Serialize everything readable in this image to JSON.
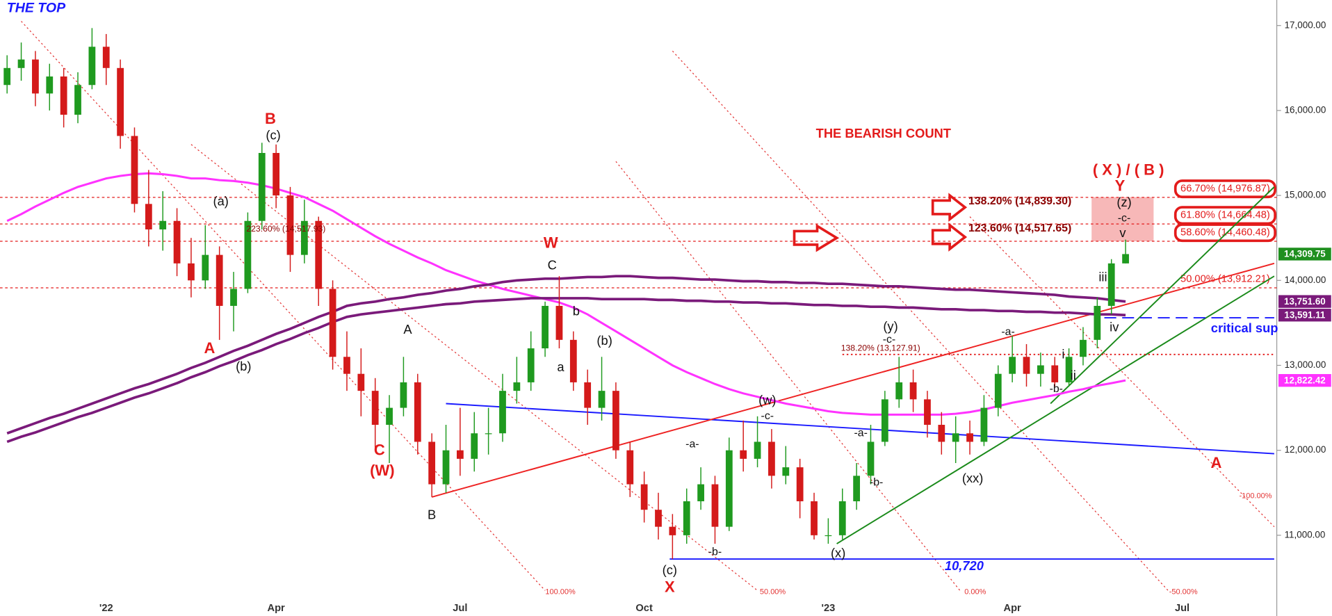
{
  "chart_data": {
    "type": "candlestick",
    "title": "THE TOP",
    "subtitle": "THE BEARISH COUNT",
    "categories": [
      null,
      null,
      null,
      null,
      null,
      null,
      null,
      "'22",
      null,
      null,
      null,
      null,
      null,
      null,
      null,
      null,
      null,
      null,
      null,
      "Apr",
      null,
      null,
      null,
      null,
      null,
      null,
      null,
      null,
      null,
      null,
      null,
      null,
      "Jul",
      null,
      null,
      null,
      null,
      null,
      null,
      null,
      null,
      null,
      null,
      null,
      null,
      "Oct",
      null,
      null,
      null,
      null,
      null,
      null,
      null,
      null,
      null,
      null,
      null,
      null,
      "'23",
      null,
      null,
      null,
      null,
      null,
      null,
      null,
      null,
      null,
      null,
      null,
      null,
      "Apr",
      null,
      null,
      null,
      null,
      null,
      null,
      null,
      null,
      null,
      null,
      null,
      "Jul",
      null,
      null,
      null,
      null,
      null,
      null
    ],
    "open": [
      16300,
      16500,
      16600,
      16200,
      16400,
      15950,
      16300,
      16750,
      16500,
      15700,
      14900,
      14600,
      14700,
      14200,
      14000,
      14300,
      13700,
      13900,
      14700,
      15500,
      15000,
      14300,
      14700,
      13900,
      13100,
      12900,
      12700,
      12300,
      12500,
      12800,
      12100,
      11600,
      12000,
      11900,
      12200,
      12200,
      12700,
      12800,
      13200,
      13700,
      13300,
      12800,
      12500,
      12700,
      12000,
      11600,
      11300,
      11100,
      11000,
      11400,
      11600,
      11100,
      12000,
      11900,
      12100,
      11700,
      11800,
      11400,
      11000,
      11000,
      11400,
      11700,
      12100,
      12600,
      12800,
      12600,
      12300,
      12100,
      12200,
      12100,
      12500,
      12900,
      13100,
      12900,
      13000,
      12800,
      13100,
      13300,
      13700,
      14200,
      null,
      null,
      null,
      null,
      null,
      null,
      null,
      null,
      null,
      null
    ],
    "high": [
      16650,
      16800,
      16700,
      16550,
      16500,
      16450,
      16970,
      16900,
      16600,
      15800,
      15300,
      15050,
      14850,
      14500,
      14650,
      14400,
      14100,
      14800,
      15620,
      15600,
      15100,
      14950,
      14750,
      14000,
      13400,
      13200,
      12850,
      12650,
      13100,
      12900,
      12200,
      12300,
      12500,
      12450,
      12500,
      12900,
      13100,
      13400,
      13750,
      14050,
      13400,
      12950,
      13100,
      12800,
      12100,
      11750,
      11500,
      11250,
      11550,
      11800,
      11700,
      12150,
      12350,
      12400,
      12250,
      12050,
      11900,
      11500,
      11200,
      11550,
      11850,
      12300,
      12700,
      13100,
      12950,
      12700,
      12450,
      12400,
      12350,
      12650,
      13000,
      13350,
      13250,
      13150,
      13100,
      13200,
      13450,
      13800,
      14250,
      14480,
      null,
      null,
      null,
      null,
      null,
      null,
      null,
      null,
      null,
      null
    ],
    "low": [
      16200,
      16350,
      16050,
      16000,
      15800,
      15850,
      16250,
      16300,
      15550,
      14800,
      14400,
      14350,
      14050,
      13800,
      13900,
      13300,
      13400,
      13850,
      14600,
      14850,
      14100,
      14200,
      13700,
      12950,
      12700,
      12400,
      12000,
      11850,
      12400,
      11950,
      11450,
      11500,
      11700,
      11750,
      11950,
      12100,
      12550,
      12700,
      13100,
      13200,
      12700,
      12300,
      12350,
      11900,
      11450,
      11150,
      10950,
      10720,
      10900,
      11300,
      10900,
      11050,
      11750,
      11800,
      11550,
      11600,
      11200,
      10950,
      10900,
      10950,
      11300,
      11600,
      12050,
      12500,
      12450,
      12150,
      11950,
      11850,
      11950,
      12050,
      12400,
      12800,
      12750,
      12750,
      12750,
      12750,
      13000,
      13200,
      13600,
      14200,
      null,
      null,
      null,
      null,
      null,
      null,
      null,
      null,
      null,
      null
    ],
    "close": [
      16500,
      16600,
      16200,
      16400,
      15950,
      16300,
      16750,
      16500,
      15700,
      14900,
      14600,
      14700,
      14200,
      14000,
      14300,
      13700,
      13900,
      14700,
      15500,
      15000,
      14300,
      14700,
      13900,
      13100,
      12900,
      12700,
      12300,
      12500,
      12800,
      12100,
      11600,
      12000,
      11900,
      12200,
      12200,
      12700,
      12800,
      13200,
      13700,
      13300,
      12800,
      12500,
      12700,
      12000,
      11600,
      11300,
      11100,
      11000,
      11400,
      11600,
      11100,
      12000,
      11900,
      12100,
      11700,
      11800,
      11400,
      11000,
      11000,
      11400,
      11700,
      12100,
      12600,
      12800,
      12600,
      12300,
      12100,
      12200,
      12100,
      12500,
      12900,
      13100,
      12900,
      13000,
      12800,
      13100,
      13300,
      13700,
      14200,
      14309.75,
      null,
      null,
      null,
      null,
      null,
      null,
      null,
      null,
      null,
      null
    ],
    "close_last_label": "14,309.75",
    "up_color": "#1f9a1f",
    "down_color": "#d41a1a",
    "price_box_color": "#1f8f1f",
    "ylim": [
      10050,
      17300
    ],
    "yticks": [
      {
        "value": 11000,
        "label": "11,000.00"
      },
      {
        "value": 12000,
        "label": "12,000.00"
      },
      {
        "value": 13000,
        "label": "13,000.00"
      },
      {
        "value": 14000,
        "label": "14,000.00"
      },
      {
        "value": 15000,
        "label": "15,000.00"
      },
      {
        "value": 16000,
        "label": "16,000.00"
      },
      {
        "value": 17000,
        "label": "17,000.00"
      }
    ],
    "overlays": [
      {
        "color": "#ff33ff",
        "last_value_label": "12,822.42",
        "values": [
          14700,
          14780,
          14870,
          14950,
          15030,
          15100,
          15150,
          15200,
          15230,
          15250,
          15260,
          15250,
          15230,
          15200,
          15200,
          15180,
          15170,
          15150,
          15120,
          15080,
          15030,
          14980,
          14900,
          14820,
          14720,
          14620,
          14520,
          14430,
          14350,
          14270,
          14200,
          14120,
          14060,
          14000,
          13950,
          13900,
          13860,
          13820,
          13780,
          13740,
          13680,
          13600,
          13500,
          13400,
          13300,
          13200,
          13100,
          13000,
          12920,
          12850,
          12780,
          12720,
          12670,
          12630,
          12590,
          12550,
          12520,
          12490,
          12460,
          12440,
          12430,
          12420,
          12420,
          12420,
          12420,
          12420,
          12420,
          12430,
          12450,
          12480,
          12520,
          12560,
          12590,
          12620,
          12650,
          12690,
          12720,
          12760,
          12790,
          12822.42,
          null,
          null,
          null,
          null,
          null,
          null,
          null,
          null,
          null,
          null
        ]
      },
      {
        "color": "#7a1a7a",
        "last_value_label": "13,751.60",
        "values": [
          12200,
          12260,
          12320,
          12380,
          12430,
          12490,
          12550,
          12610,
          12670,
          12730,
          12780,
          12840,
          12900,
          12970,
          13030,
          13100,
          13170,
          13230,
          13300,
          13370,
          13430,
          13500,
          13570,
          13630,
          13700,
          13730,
          13750,
          13780,
          13800,
          13830,
          13850,
          13880,
          13900,
          13930,
          13950,
          13980,
          14000,
          14010,
          14020,
          14020,
          14030,
          14040,
          14040,
          14050,
          14050,
          14040,
          14030,
          14030,
          14020,
          14010,
          14010,
          14000,
          13990,
          13990,
          13980,
          13980,
          13970,
          13970,
          13960,
          13960,
          13950,
          13940,
          13930,
          13930,
          13920,
          13910,
          13900,
          13890,
          13890,
          13880,
          13870,
          13860,
          13850,
          13840,
          13830,
          13810,
          13800,
          13790,
          13770,
          13751.6,
          null,
          null,
          null,
          null,
          null,
          null,
          null,
          null,
          null,
          null
        ]
      },
      {
        "color": "#7a1a7a",
        "last_value_label": "13,591.11",
        "values": [
          12100,
          12160,
          12210,
          12270,
          12330,
          12390,
          12440,
          12500,
          12560,
          12620,
          12670,
          12730,
          12790,
          12860,
          12920,
          12990,
          13050,
          13120,
          13180,
          13250,
          13310,
          13380,
          13440,
          13510,
          13570,
          13600,
          13620,
          13640,
          13660,
          13680,
          13700,
          13720,
          13730,
          13750,
          13760,
          13770,
          13780,
          13790,
          13790,
          13790,
          13790,
          13790,
          13780,
          13780,
          13780,
          13780,
          13770,
          13770,
          13760,
          13760,
          13750,
          13750,
          13740,
          13740,
          13730,
          13730,
          13720,
          13710,
          13710,
          13700,
          13700,
          13690,
          13690,
          13680,
          13680,
          13670,
          13660,
          13660,
          13650,
          13650,
          13640,
          13640,
          13630,
          13630,
          13620,
          13620,
          13610,
          13600,
          13600,
          13591.11,
          null,
          null,
          null,
          null,
          null,
          null,
          null,
          null,
          null,
          null
        ]
      }
    ],
    "level_color": "#e31b1b",
    "levels": [
      {
        "value": 14976.87,
        "label": "66.70% (14,976.87)",
        "boxed": true
      },
      {
        "value": 14664.48,
        "label": "61.80% (14,664.48)",
        "boxed": true
      },
      {
        "value": 14460.48,
        "label": "58.60% (14,460.48)",
        "boxed": true
      },
      {
        "value": 13912.21,
        "label": "50.00% (13,912.21)",
        "boxed": false
      }
    ],
    "trend_lines": [
      {
        "from": [
          31,
          12550
        ],
        "to": [
          89.5,
          11960
        ],
        "color": "#1a1aff",
        "dash": false
      },
      {
        "from": [
          30,
          11450
        ],
        "to": [
          89.5,
          14200
        ],
        "color": "#ee2222",
        "dash": false
      },
      {
        "from": [
          58.6,
          10900
        ],
        "to": [
          89.5,
          14050
        ],
        "color": "#1a8a1a",
        "dash": false
      },
      {
        "from": [
          73.7,
          12550
        ],
        "to": [
          89.5,
          15100
        ],
        "color": "#1a8a1a",
        "dash": false
      },
      {
        "from": [
          46.8,
          10720
        ],
        "to": [
          89.5,
          10720
        ],
        "color": "#1a1aff",
        "dash": false
      },
      {
        "from": [
          77.5,
          13560
        ],
        "to": [
          89.5,
          13560
        ],
        "color": "#1a1aff",
        "dash": true
      },
      {
        "from": [
          59,
          13127.91
        ],
        "to": [
          89.5,
          13127.91
        ],
        "color": "#e31b1b",
        "dash": true
      }
    ],
    "channel_color": "#e33333",
    "channel_lines": [
      {
        "from": [
          1,
          17050
        ],
        "to": [
          38,
          10350
        ],
        "label": "100.00%"
      },
      {
        "from": [
          13,
          15600
        ],
        "to": [
          53,
          10350
        ],
        "label": "50.00%"
      },
      {
        "from": [
          43,
          15400
        ],
        "to": [
          67.3,
          10350
        ],
        "label": "0.00%"
      },
      {
        "from": [
          47,
          16700
        ],
        "to": [
          82,
          10350
        ],
        "label": "-50.00%"
      },
      {
        "from": [
          68,
          14750
        ],
        "to": [
          89.5,
          11100
        ],
        "label": "-100.00%"
      }
    ],
    "wave_labels": [
      {
        "text": "B",
        "at": 18.6,
        "price": 15890,
        "color": "#e31b1b"
      },
      {
        "text": "(c)",
        "at": 18.8,
        "price": 15700,
        "color": "#111111"
      },
      {
        "text": "(a)",
        "at": 15.1,
        "price": 14920,
        "color": "#111111"
      },
      {
        "text": "A",
        "at": 14.3,
        "price": 13190,
        "color": "#e31b1b"
      },
      {
        "text": "(b)",
        "at": 16.7,
        "price": 12980,
        "color": "#111111"
      },
      {
        "text": "C",
        "at": 26.3,
        "price": 11990,
        "color": "#e31b1b"
      },
      {
        "text": "(W)",
        "at": 26.5,
        "price": 11750,
        "color": "#e31b1b"
      },
      {
        "text": "A",
        "at": 28.3,
        "price": 13410,
        "color": "#111111"
      },
      {
        "text": "B",
        "at": 30,
        "price": 11230,
        "color": "#111111"
      },
      {
        "text": "W",
        "at": 38.4,
        "price": 14430,
        "color": "#e31b1b"
      },
      {
        "text": "C",
        "at": 38.5,
        "price": 14170,
        "color": "#111111"
      },
      {
        "text": "b",
        "at": 40.2,
        "price": 13630,
        "color": "#111111"
      },
      {
        "text": "a",
        "at": 39.1,
        "price": 12970,
        "color": "#111111"
      },
      {
        "text": "(b)",
        "at": 42.2,
        "price": 13280,
        "color": "#111111"
      },
      {
        "text": "-a-",
        "at": 48.4,
        "price": 12070,
        "color": "#111111"
      },
      {
        "text": "-b-",
        "at": 50,
        "price": 10800,
        "color": "#111111"
      },
      {
        "text": "(w)",
        "at": 53.7,
        "price": 12580,
        "color": "#111111"
      },
      {
        "text": "-c-",
        "at": 53.7,
        "price": 12400,
        "color": "#111111"
      },
      {
        "text": "(c)",
        "at": 46.8,
        "price": 10580,
        "color": "#111111"
      },
      {
        "text": "X",
        "at": 46.8,
        "price": 10380,
        "color": "#e31b1b"
      },
      {
        "text": "(x)",
        "at": 58.7,
        "price": 10780,
        "color": "#111111"
      },
      {
        "text": "-a-",
        "at": 60.3,
        "price": 12200,
        "color": "#111111"
      },
      {
        "text": "-b-",
        "at": 61.4,
        "price": 11620,
        "color": "#111111"
      },
      {
        "text": "(y)",
        "at": 62.4,
        "price": 13450,
        "color": "#111111"
      },
      {
        "text": "-c-",
        "at": 62.3,
        "price": 13300,
        "color": "#111111"
      },
      {
        "text": "(xx)",
        "at": 68.2,
        "price": 11660,
        "color": "#111111"
      },
      {
        "text": "-a-",
        "at": 70.7,
        "price": 13390,
        "color": "#111111"
      },
      {
        "text": "-b-",
        "at": 74.1,
        "price": 12720,
        "color": "#111111"
      },
      {
        "text": "i",
        "at": 74.6,
        "price": 13120,
        "color": "#111111"
      },
      {
        "text": "ii",
        "at": 75.3,
        "price": 12870,
        "color": "#111111"
      },
      {
        "text": "iii",
        "at": 77.4,
        "price": 14030,
        "color": "#111111"
      },
      {
        "text": "iv",
        "at": 78.2,
        "price": 13440,
        "color": "#111111"
      },
      {
        "text": "v",
        "at": 78.8,
        "price": 14550,
        "color": "#111111"
      },
      {
        "text": "-c-",
        "at": 78.9,
        "price": 14730,
        "color": "#111111"
      },
      {
        "text": "(z)",
        "at": 78.9,
        "price": 14910,
        "color": "#111111"
      },
      {
        "text": "Y",
        "at": 78.6,
        "price": 15100,
        "color": "#e31b1b"
      },
      {
        "text": "( X ) / ( B )",
        "at": 79.2,
        "price": 15290,
        "color": "#e31b1b"
      },
      {
        "text": "A",
        "at": 85.4,
        "price": 11840,
        "color": "#e31b1b"
      },
      {
        "text": "critical sup",
        "at": 87.4,
        "price": 13430,
        "color": "#1a1aff"
      },
      {
        "text": "10,720",
        "at": 67.6,
        "price": 10630,
        "color": "#1a1aff"
      }
    ],
    "note_color": "#8b0000",
    "notes": [
      {
        "text": "138.20% (14,839.30)",
        "at": 67.9,
        "price": 14930,
        "emphasis": true
      },
      {
        "text": "123.60% (14,517.65)",
        "at": 67.9,
        "price": 14610,
        "emphasis": true
      },
      {
        "text": "223.60% (14,517.93)",
        "at": 16.9,
        "price": 14600,
        "emphasis": false
      },
      {
        "text": "138.20% (13,127.91)",
        "at": 58.9,
        "price": 13200,
        "emphasis": false
      }
    ]
  }
}
